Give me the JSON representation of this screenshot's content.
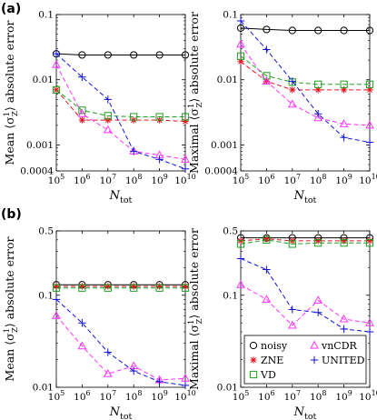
{
  "figure": {
    "panel_labels": [
      "(a)",
      "(b)"
    ]
  },
  "colors": {
    "noisy": "#000000",
    "ZNE": "#e8121f",
    "VD": "#1d9e1d",
    "vnCDR": "#ff33ff",
    "UNITED": "#1212d9"
  },
  "chart_data": [
    {
      "id": "a-mean",
      "type": "line",
      "xscale": "log",
      "yscale": "log",
      "x": [
        100000,
        1000000,
        10000000,
        100000000,
        1000000000,
        10000000000
      ],
      "xticklabels": [
        "10^5",
        "10^6",
        "10^7",
        "10^8",
        "10^9",
        "10^10"
      ],
      "xlabel": "N_tot",
      "ylabel": "Mean ⟨σ_Z^1⟩ absolute error",
      "ylim": [
        0.0004,
        0.1
      ],
      "yticks": [
        0.0004,
        0.001,
        0.01,
        0.1
      ],
      "yticklabels": [
        "0.0004",
        "0.001",
        "0.01",
        "0.1"
      ],
      "series": [
        {
          "name": "noisy",
          "values": [
            0.025,
            0.024,
            0.024,
            0.024,
            0.024,
            0.024
          ]
        },
        {
          "name": "ZNE",
          "values": [
            0.007,
            0.0024,
            0.0024,
            0.0024,
            0.0024,
            0.0023
          ]
        },
        {
          "name": "VD",
          "values": [
            0.007,
            0.0034,
            0.0028,
            0.0027,
            0.0027,
            0.0027
          ]
        },
        {
          "name": "vnCDR",
          "values": [
            0.017,
            0.003,
            0.0017,
            0.0008,
            0.0007,
            0.0006
          ]
        },
        {
          "name": "UNITED",
          "values": [
            0.025,
            0.011,
            0.005,
            0.0008,
            0.0006,
            0.00043
          ]
        }
      ]
    },
    {
      "id": "a-max",
      "type": "line",
      "xscale": "log",
      "yscale": "log",
      "x": [
        100000,
        1000000,
        10000000,
        100000000,
        1000000000,
        10000000000
      ],
      "xticklabels": [
        "10^5",
        "10^6",
        "10^7",
        "10^8",
        "10^9",
        "10^10"
      ],
      "xlabel": "N_tot",
      "ylabel": "Maximal ⟨σ_Z^1⟩ absolute error",
      "ylim": [
        0.0004,
        0.1
      ],
      "yticks": [
        0.0004,
        0.001,
        0.01,
        0.1
      ],
      "yticklabels": [
        "0.0004",
        "0.001",
        "0.01",
        "0.1"
      ],
      "series": [
        {
          "name": "noisy",
          "values": [
            0.062,
            0.059,
            0.057,
            0.057,
            0.057,
            0.057
          ]
        },
        {
          "name": "ZNE",
          "values": [
            0.019,
            0.0095,
            0.007,
            0.007,
            0.007,
            0.007
          ]
        },
        {
          "name": "VD",
          "values": [
            0.023,
            0.0115,
            0.0092,
            0.0085,
            0.0085,
            0.0085
          ]
        },
        {
          "name": "vnCDR",
          "values": [
            0.035,
            0.0095,
            0.0042,
            0.0026,
            0.0021,
            0.002
          ]
        },
        {
          "name": "UNITED",
          "values": [
            0.08,
            0.029,
            0.0095,
            0.003,
            0.0013,
            0.0011
          ]
        }
      ]
    },
    {
      "id": "b-mean",
      "type": "line",
      "xscale": "log",
      "yscale": "log",
      "x": [
        100000,
        1000000,
        10000000,
        100000000,
        1000000000,
        10000000000
      ],
      "xticklabels": [
        "10^5",
        "10^6",
        "10^7",
        "10^8",
        "10^9",
        "10^10"
      ],
      "xlabel": "N_tot",
      "ylabel": "Mean ⟨σ_Z^1⟩ absolute error",
      "ylim": [
        0.01,
        0.5
      ],
      "yticks": [
        0.01,
        0.1,
        0.5
      ],
      "yticklabels": [
        "0.01",
        "0.1",
        "0.5"
      ],
      "series": [
        {
          "name": "noisy",
          "values": [
            0.13,
            0.13,
            0.13,
            0.13,
            0.13,
            0.13
          ]
        },
        {
          "name": "ZNE",
          "values": [
            0.125,
            0.125,
            0.125,
            0.125,
            0.125,
            0.125
          ]
        },
        {
          "name": "VD",
          "values": [
            0.12,
            0.12,
            0.12,
            0.12,
            0.12,
            0.12
          ]
        },
        {
          "name": "vnCDR",
          "values": [
            0.06,
            0.028,
            0.014,
            0.017,
            0.012,
            0.0125
          ]
        },
        {
          "name": "UNITED",
          "values": [
            0.09,
            0.05,
            0.024,
            0.015,
            0.0115,
            0.0105
          ]
        }
      ]
    },
    {
      "id": "b-max",
      "type": "line",
      "xscale": "log",
      "yscale": "log",
      "x": [
        100000,
        1000000,
        10000000,
        100000000,
        1000000000,
        10000000000
      ],
      "xticklabels": [
        "10^5",
        "10^6",
        "10^7",
        "10^8",
        "10^9",
        "10^10"
      ],
      "xlabel": "N_tot",
      "ylabel": "Maximal ⟨σ_Z^1⟩ absolute error",
      "ylim": [
        0.01,
        0.5
      ],
      "yticks": [
        0.01,
        0.1,
        0.5
      ],
      "yticklabels": [
        "0.01",
        "0.1",
        "0.5"
      ],
      "legend": {
        "location": "bottom",
        "columns": 2,
        "entries": [
          "noisy",
          "vnCDR",
          "ZNE",
          "UNITED",
          "VD"
        ]
      },
      "series": [
        {
          "name": "noisy",
          "values": [
            0.42,
            0.42,
            0.42,
            0.42,
            0.42,
            0.42
          ]
        },
        {
          "name": "ZNE",
          "values": [
            0.39,
            0.41,
            0.39,
            0.39,
            0.39,
            0.39
          ]
        },
        {
          "name": "VD",
          "values": [
            0.36,
            0.4,
            0.36,
            0.37,
            0.37,
            0.37
          ]
        },
        {
          "name": "vnCDR",
          "values": [
            0.13,
            0.09,
            0.047,
            0.088,
            0.055,
            0.05
          ]
        },
        {
          "name": "UNITED",
          "values": [
            0.25,
            0.19,
            0.07,
            0.065,
            0.043,
            0.04
          ]
        }
      ]
    }
  ]
}
